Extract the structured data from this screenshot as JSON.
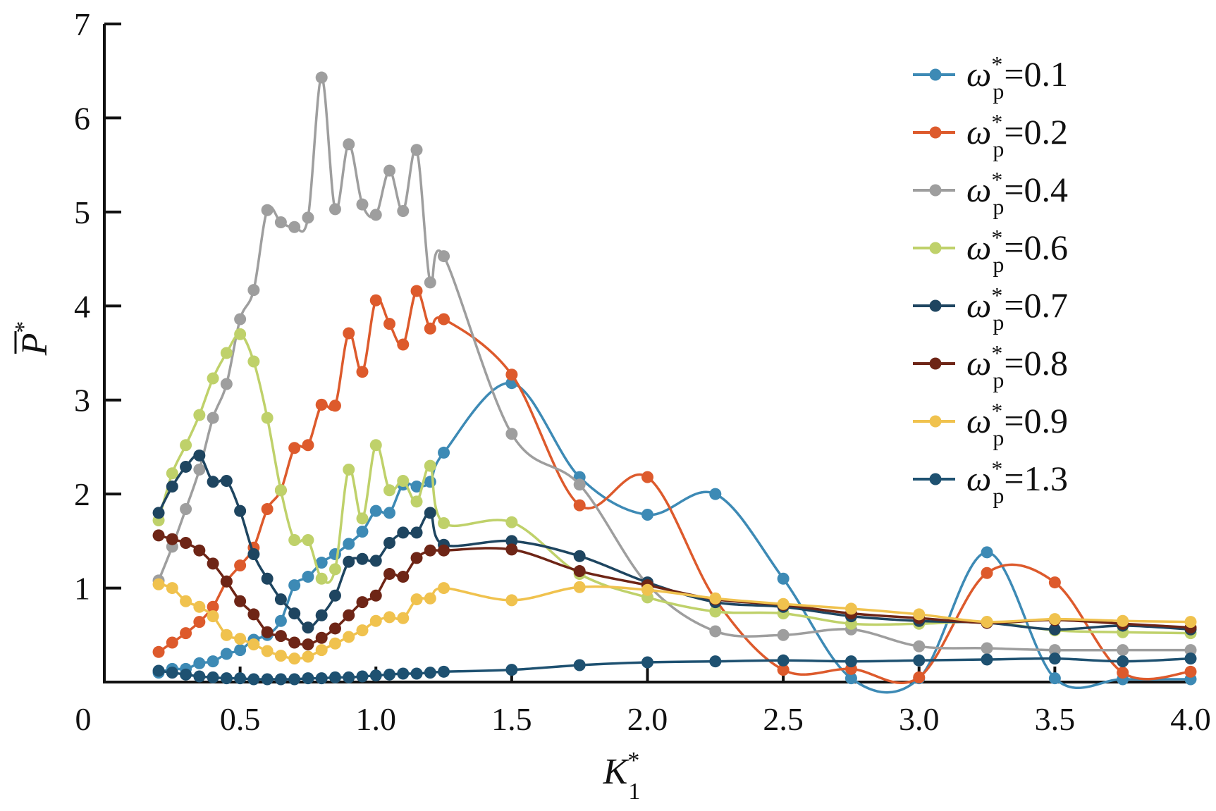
{
  "chart_data": {
    "type": "line",
    "xlabel": {
      "base": "K",
      "sub": "1",
      "sup": "*"
    },
    "ylabel": {
      "base": "P",
      "sup": "*",
      "overline": true
    },
    "xlim": [
      0,
      4.0
    ],
    "ylim": [
      0,
      7
    ],
    "x_ticks": [
      {
        "value": 0,
        "label": "0"
      },
      {
        "value": 0.5,
        "label": "0.5"
      },
      {
        "value": 1.0,
        "label": "1.0"
      },
      {
        "value": 1.5,
        "label": "1.5"
      },
      {
        "value": 2.0,
        "label": "2.0"
      },
      {
        "value": 2.5,
        "label": "2.5"
      },
      {
        "value": 3.0,
        "label": "3.0"
      },
      {
        "value": 3.5,
        "label": "3.5"
      },
      {
        "value": 4.0,
        "label": "4.0"
      }
    ],
    "y_ticks": [
      {
        "value": 1,
        "label": "1"
      },
      {
        "value": 2,
        "label": "2"
      },
      {
        "value": 3,
        "label": "3"
      },
      {
        "value": 4,
        "label": "4"
      },
      {
        "value": 5,
        "label": "5"
      },
      {
        "value": 6,
        "label": "6"
      },
      {
        "value": 7,
        "label": "7"
      }
    ],
    "grid": false,
    "legend_position": "top-right",
    "series": [
      {
        "legend": {
          "base": "ω",
          "sub": "p",
          "sup": "*",
          "value": "=0.1"
        },
        "color": "#3d8ab5",
        "points": [
          [
            0.2,
            0.1
          ],
          [
            0.25,
            0.14
          ],
          [
            0.3,
            0.14
          ],
          [
            0.35,
            0.2
          ],
          [
            0.4,
            0.22
          ],
          [
            0.45,
            0.3
          ],
          [
            0.5,
            0.34
          ],
          [
            0.55,
            0.45
          ],
          [
            0.6,
            0.5
          ],
          [
            0.65,
            0.65
          ],
          [
            0.7,
            1.03
          ],
          [
            0.75,
            1.12
          ],
          [
            0.8,
            1.27
          ],
          [
            0.85,
            1.36
          ],
          [
            0.9,
            1.47
          ],
          [
            0.95,
            1.6
          ],
          [
            1.0,
            1.82
          ],
          [
            1.05,
            1.8
          ],
          [
            1.1,
            2.1
          ],
          [
            1.15,
            2.08
          ],
          [
            1.2,
            2.13
          ],
          [
            1.25,
            2.44
          ],
          [
            1.5,
            3.18
          ],
          [
            1.75,
            2.18
          ],
          [
            2.0,
            1.78
          ],
          [
            2.25,
            2.0
          ],
          [
            2.5,
            1.1
          ],
          [
            2.75,
            0.04
          ],
          [
            3.0,
            0.04
          ],
          [
            3.25,
            1.38
          ],
          [
            3.5,
            0.04
          ],
          [
            3.75,
            0.03
          ],
          [
            4.0,
            0.03
          ]
        ]
      },
      {
        "legend": {
          "base": "ω",
          "sub": "p",
          "sup": "*",
          "value": "=0.2"
        },
        "color": "#dd5a2c",
        "points": [
          [
            0.2,
            0.32
          ],
          [
            0.25,
            0.42
          ],
          [
            0.3,
            0.52
          ],
          [
            0.35,
            0.64
          ],
          [
            0.4,
            0.8
          ],
          [
            0.45,
            1.07
          ],
          [
            0.5,
            1.24
          ],
          [
            0.55,
            1.43
          ],
          [
            0.6,
            1.84
          ],
          [
            0.65,
            2.04
          ],
          [
            0.7,
            2.49
          ],
          [
            0.75,
            2.52
          ],
          [
            0.8,
            2.95
          ],
          [
            0.85,
            2.94
          ],
          [
            0.9,
            3.71
          ],
          [
            0.95,
            3.3
          ],
          [
            1.0,
            4.06
          ],
          [
            1.05,
            3.81
          ],
          [
            1.1,
            3.59
          ],
          [
            1.15,
            4.16
          ],
          [
            1.2,
            3.76
          ],
          [
            1.25,
            3.86
          ],
          [
            1.5,
            3.27
          ],
          [
            1.75,
            1.88
          ],
          [
            2.0,
            2.18
          ],
          [
            2.25,
            0.88
          ],
          [
            2.5,
            0.13
          ],
          [
            2.75,
            0.14
          ],
          [
            3.0,
            0.05
          ],
          [
            3.25,
            1.16
          ],
          [
            3.5,
            1.06
          ],
          [
            3.75,
            0.1
          ],
          [
            4.0,
            0.11
          ]
        ]
      },
      {
        "legend": {
          "base": "ω",
          "sub": "p",
          "sup": "*",
          "value": "=0.4"
        },
        "color": "#9e9e9e",
        "points": [
          [
            0.2,
            1.08
          ],
          [
            0.25,
            1.44
          ],
          [
            0.3,
            1.84
          ],
          [
            0.35,
            2.26
          ],
          [
            0.4,
            2.81
          ],
          [
            0.45,
            3.17
          ],
          [
            0.5,
            3.86
          ],
          [
            0.55,
            4.17
          ],
          [
            0.6,
            5.02
          ],
          [
            0.65,
            4.89
          ],
          [
            0.7,
            4.84
          ],
          [
            0.75,
            4.94
          ],
          [
            0.8,
            6.43
          ],
          [
            0.85,
            5.03
          ],
          [
            0.9,
            5.72
          ],
          [
            0.95,
            5.08
          ],
          [
            1.0,
            4.97
          ],
          [
            1.05,
            5.44
          ],
          [
            1.1,
            5.01
          ],
          [
            1.15,
            5.66
          ],
          [
            1.2,
            4.25
          ],
          [
            1.25,
            4.53
          ],
          [
            1.5,
            2.64
          ],
          [
            1.75,
            2.1
          ],
          [
            2.0,
            1.04
          ],
          [
            2.25,
            0.54
          ],
          [
            2.5,
            0.5
          ],
          [
            2.75,
            0.56
          ],
          [
            3.0,
            0.38
          ],
          [
            3.25,
            0.36
          ],
          [
            3.5,
            0.34
          ],
          [
            3.75,
            0.34
          ],
          [
            4.0,
            0.34
          ]
        ]
      },
      {
        "legend": {
          "base": "ω",
          "sub": "p",
          "sup": "*",
          "value": "=0.6"
        },
        "color": "#bfd16a",
        "points": [
          [
            0.2,
            1.72
          ],
          [
            0.25,
            2.22
          ],
          [
            0.3,
            2.52
          ],
          [
            0.35,
            2.84
          ],
          [
            0.4,
            3.23
          ],
          [
            0.45,
            3.5
          ],
          [
            0.5,
            3.7
          ],
          [
            0.55,
            3.41
          ],
          [
            0.6,
            2.81
          ],
          [
            0.65,
            2.04
          ],
          [
            0.7,
            1.51
          ],
          [
            0.75,
            1.51
          ],
          [
            0.8,
            1.1
          ],
          [
            0.85,
            1.2
          ],
          [
            0.9,
            2.26
          ],
          [
            0.95,
            1.74
          ],
          [
            1.0,
            2.52
          ],
          [
            1.05,
            2.04
          ],
          [
            1.1,
            2.14
          ],
          [
            1.15,
            1.92
          ],
          [
            1.2,
            2.3
          ],
          [
            1.25,
            1.69
          ],
          [
            1.5,
            1.7
          ],
          [
            1.75,
            1.15
          ],
          [
            2.0,
            0.9
          ],
          [
            2.25,
            0.75
          ],
          [
            2.5,
            0.73
          ],
          [
            2.75,
            0.62
          ],
          [
            3.0,
            0.62
          ],
          [
            3.25,
            0.64
          ],
          [
            3.5,
            0.55
          ],
          [
            3.75,
            0.53
          ],
          [
            4.0,
            0.52
          ]
        ]
      },
      {
        "legend": {
          "base": "ω",
          "sub": "p",
          "sup": "*",
          "value": "=0.7"
        },
        "color": "#1e4560",
        "points": [
          [
            0.2,
            1.8
          ],
          [
            0.25,
            2.08
          ],
          [
            0.3,
            2.29
          ],
          [
            0.35,
            2.41
          ],
          [
            0.4,
            2.13
          ],
          [
            0.45,
            2.14
          ],
          [
            0.5,
            1.82
          ],
          [
            0.55,
            1.36
          ],
          [
            0.6,
            1.1
          ],
          [
            0.65,
            0.88
          ],
          [
            0.7,
            0.73
          ],
          [
            0.75,
            0.58
          ],
          [
            0.8,
            0.71
          ],
          [
            0.85,
            0.92
          ],
          [
            0.9,
            1.28
          ],
          [
            0.95,
            1.31
          ],
          [
            1.0,
            1.29
          ],
          [
            1.05,
            1.48
          ],
          [
            1.1,
            1.59
          ],
          [
            1.15,
            1.59
          ],
          [
            1.2,
            1.8
          ],
          [
            1.25,
            1.46
          ],
          [
            1.5,
            1.5
          ],
          [
            1.75,
            1.34
          ],
          [
            2.0,
            1.06
          ],
          [
            2.25,
            0.85
          ],
          [
            2.5,
            0.8
          ],
          [
            2.75,
            0.7
          ],
          [
            3.0,
            0.65
          ],
          [
            3.25,
            0.63
          ],
          [
            3.5,
            0.56
          ],
          [
            3.75,
            0.6
          ],
          [
            4.0,
            0.56
          ]
        ]
      },
      {
        "legend": {
          "base": "ω",
          "sub": "p",
          "sup": "*",
          "value": "=0.8"
        },
        "color": "#6e2516",
        "points": [
          [
            0.2,
            1.56
          ],
          [
            0.25,
            1.52
          ],
          [
            0.3,
            1.48
          ],
          [
            0.35,
            1.4
          ],
          [
            0.4,
            1.26
          ],
          [
            0.45,
            1.07
          ],
          [
            0.5,
            0.86
          ],
          [
            0.55,
            0.72
          ],
          [
            0.6,
            0.53
          ],
          [
            0.65,
            0.49
          ],
          [
            0.7,
            0.42
          ],
          [
            0.75,
            0.4
          ],
          [
            0.8,
            0.47
          ],
          [
            0.85,
            0.57
          ],
          [
            0.9,
            0.71
          ],
          [
            0.95,
            0.85
          ],
          [
            1.0,
            0.92
          ],
          [
            1.05,
            1.15
          ],
          [
            1.1,
            1.12
          ],
          [
            1.15,
            1.32
          ],
          [
            1.2,
            1.4
          ],
          [
            1.25,
            1.4
          ],
          [
            1.5,
            1.41
          ],
          [
            1.75,
            1.18
          ],
          [
            2.0,
            1.03
          ],
          [
            2.25,
            0.88
          ],
          [
            2.5,
            0.82
          ],
          [
            2.75,
            0.73
          ],
          [
            3.0,
            0.68
          ],
          [
            3.25,
            0.63
          ],
          [
            3.5,
            0.66
          ],
          [
            3.75,
            0.62
          ],
          [
            4.0,
            0.58
          ]
        ]
      },
      {
        "legend": {
          "base": "ω",
          "sub": "p",
          "sup": "*",
          "value": "=0.9"
        },
        "color": "#f0c24e",
        "points": [
          [
            0.2,
            1.04
          ],
          [
            0.25,
            1.0
          ],
          [
            0.3,
            0.86
          ],
          [
            0.35,
            0.8
          ],
          [
            0.4,
            0.7
          ],
          [
            0.45,
            0.5
          ],
          [
            0.5,
            0.46
          ],
          [
            0.55,
            0.4
          ],
          [
            0.6,
            0.33
          ],
          [
            0.65,
            0.28
          ],
          [
            0.7,
            0.25
          ],
          [
            0.75,
            0.27
          ],
          [
            0.8,
            0.34
          ],
          [
            0.85,
            0.41
          ],
          [
            0.9,
            0.48
          ],
          [
            0.95,
            0.55
          ],
          [
            1.0,
            0.65
          ],
          [
            1.05,
            0.69
          ],
          [
            1.1,
            0.68
          ],
          [
            1.15,
            0.88
          ],
          [
            1.2,
            0.89
          ],
          [
            1.25,
            1.0
          ],
          [
            1.5,
            0.87
          ],
          [
            1.75,
            1.01
          ],
          [
            2.0,
            0.98
          ],
          [
            2.25,
            0.89
          ],
          [
            2.5,
            0.83
          ],
          [
            2.75,
            0.78
          ],
          [
            3.0,
            0.72
          ],
          [
            3.25,
            0.64
          ],
          [
            3.5,
            0.67
          ],
          [
            3.75,
            0.65
          ],
          [
            4.0,
            0.64
          ]
        ]
      },
      {
        "legend": {
          "base": "ω",
          "sub": "p",
          "sup": "*",
          "value": "=1.3"
        },
        "color": "#1e5171",
        "points": [
          [
            0.2,
            0.12
          ],
          [
            0.25,
            0.1
          ],
          [
            0.3,
            0.08
          ],
          [
            0.35,
            0.06
          ],
          [
            0.4,
            0.05
          ],
          [
            0.45,
            0.04
          ],
          [
            0.5,
            0.04
          ],
          [
            0.55,
            0.03
          ],
          [
            0.6,
            0.03
          ],
          [
            0.65,
            0.03
          ],
          [
            0.7,
            0.03
          ],
          [
            0.75,
            0.04
          ],
          [
            0.8,
            0.04
          ],
          [
            0.85,
            0.05
          ],
          [
            0.9,
            0.05
          ],
          [
            0.95,
            0.06
          ],
          [
            1.0,
            0.07
          ],
          [
            1.05,
            0.08
          ],
          [
            1.1,
            0.09
          ],
          [
            1.15,
            0.09
          ],
          [
            1.2,
            0.1
          ],
          [
            1.25,
            0.11
          ],
          [
            1.5,
            0.13
          ],
          [
            1.75,
            0.18
          ],
          [
            2.0,
            0.21
          ],
          [
            2.25,
            0.22
          ],
          [
            2.5,
            0.23
          ],
          [
            2.75,
            0.22
          ],
          [
            3.0,
            0.23
          ],
          [
            3.25,
            0.24
          ],
          [
            3.5,
            0.25
          ],
          [
            3.75,
            0.22
          ],
          [
            4.0,
            0.25
          ]
        ]
      }
    ]
  }
}
